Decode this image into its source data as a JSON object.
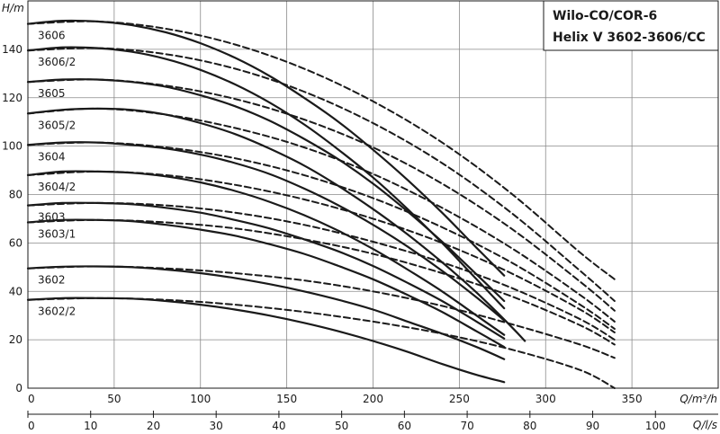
{
  "chart_data": {
    "type": "line",
    "title": [
      "Wilo-CO/COR-6",
      "Helix V 3602-3606/CC"
    ],
    "ylabel": "H/m",
    "xlabel": "Q/m³/h",
    "x2label": "Q/l/s",
    "xlim": [
      0,
      400
    ],
    "ylim": [
      0,
      160
    ],
    "x2lim": [
      0,
      110
    ],
    "x_ticks": [
      0,
      50,
      100,
      150,
      200,
      250,
      300,
      350
    ],
    "y_ticks": [
      0,
      20,
      40,
      60,
      80,
      100,
      120,
      140
    ],
    "x2_ticks": [
      0,
      10,
      20,
      30,
      40,
      50,
      60,
      70,
      80,
      90,
      100
    ],
    "grid": true,
    "series": [
      {
        "name": "3606",
        "style": "solid",
        "x": [
          0,
          20,
          40,
          60,
          80,
          100,
          120,
          140,
          160,
          180,
          200,
          220,
          240,
          260,
          276
        ],
        "y": [
          150.5,
          151.8,
          151.5,
          150,
          147,
          142.5,
          136.5,
          129,
          120,
          110,
          98.5,
          86,
          72.5,
          58,
          46.5
        ]
      },
      {
        "name": "3606",
        "style": "dashed",
        "x": [
          0,
          40,
          80,
          120,
          160,
          200,
          240,
          280,
          320,
          340
        ],
        "y": [
          150.5,
          151.5,
          148.5,
          142,
          132,
          118.5,
          101.5,
          80.5,
          56,
          45
        ]
      },
      {
        "name": "3606/2",
        "style": "solid",
        "x": [
          0,
          20,
          40,
          60,
          80,
          100,
          120,
          140,
          160,
          180,
          200,
          220,
          240,
          260,
          276
        ],
        "y": [
          139.5,
          140.8,
          140.5,
          139,
          136,
          131.5,
          125.5,
          118,
          109,
          98.5,
          87,
          74,
          60,
          45,
          33
        ]
      },
      {
        "name": "3606/2",
        "style": "dashed",
        "x": [
          0,
          40,
          80,
          120,
          160,
          200,
          240,
          280,
          320,
          340
        ],
        "y": [
          139.5,
          140.5,
          138,
          132,
          122.5,
          109.5,
          93,
          72.5,
          48.5,
          36
        ]
      },
      {
        "name": "3605",
        "style": "solid",
        "x": [
          0,
          20,
          40,
          60,
          80,
          100,
          120,
          140,
          160,
          180,
          200,
          220,
          240,
          260,
          276
        ],
        "y": [
          126.5,
          127.5,
          127.5,
          126.5,
          124.5,
          121,
          116.5,
          110.5,
          103,
          94.5,
          84.5,
          73,
          60.5,
          47,
          36
        ]
      },
      {
        "name": "3605",
        "style": "dashed",
        "x": [
          0,
          40,
          80,
          120,
          160,
          200,
          240,
          280,
          320,
          340
        ],
        "y": [
          126.5,
          127.5,
          125,
          119.5,
          111,
          99.5,
          84.5,
          66,
          44,
          32
        ]
      },
      {
        "name": "3605/2",
        "style": "solid",
        "x": [
          0,
          20,
          40,
          60,
          80,
          100,
          120,
          140,
          160,
          180,
          200,
          220,
          240,
          260,
          280,
          288
        ],
        "y": [
          113.5,
          115,
          115.5,
          115,
          113,
          109.5,
          105,
          99,
          92,
          83.5,
          74,
          63.5,
          52,
          39.5,
          25.5,
          19.5
        ]
      },
      {
        "name": "3605/2",
        "style": "dashed",
        "x": [
          0,
          40,
          80,
          120,
          160,
          200,
          240,
          280,
          320,
          340
        ],
        "y": [
          113.5,
          115.5,
          113,
          107.5,
          99.5,
          88.5,
          74.5,
          58,
          38.5,
          27.5
        ]
      },
      {
        "name": "3604",
        "style": "solid",
        "x": [
          0,
          20,
          40,
          60,
          80,
          100,
          120,
          140,
          160,
          180,
          200,
          220,
          240,
          260,
          276
        ],
        "y": [
          100.5,
          101.5,
          101.5,
          100.5,
          99,
          96.5,
          93,
          88.5,
          82.5,
          75.5,
          67.5,
          58.5,
          48.5,
          37.5,
          28
        ]
      },
      {
        "name": "3604",
        "style": "dashed",
        "x": [
          0,
          40,
          80,
          120,
          160,
          200,
          240,
          280,
          320,
          340
        ],
        "y": [
          100.5,
          101.5,
          99.5,
          95,
          88,
          78.5,
          66.5,
          52,
          34.5,
          24.5
        ]
      },
      {
        "name": "3604/2",
        "style": "solid",
        "x": [
          0,
          20,
          40,
          60,
          80,
          100,
          120,
          140,
          160,
          180,
          200,
          220,
          240,
          260,
          276
        ],
        "y": [
          88,
          89.5,
          89.5,
          89,
          87.5,
          85,
          81.5,
          77,
          71.5,
          65,
          57.5,
          49,
          40,
          30,
          22
        ]
      },
      {
        "name": "3604/2",
        "style": "dashed",
        "x": [
          0,
          40,
          80,
          120,
          160,
          200,
          240,
          280,
          320,
          340
        ],
        "y": [
          88,
          89.5,
          88,
          84,
          78,
          70,
          60,
          47.5,
          32.5,
          23
        ]
      },
      {
        "name": "3603",
        "style": "solid",
        "x": [
          0,
          20,
          40,
          60,
          80,
          100,
          120,
          140,
          160,
          180,
          200,
          220,
          240,
          260,
          276
        ],
        "y": [
          75.5,
          76.5,
          76.5,
          76,
          74.5,
          72.5,
          69.5,
          66,
          61.5,
          56.5,
          50.5,
          43.5,
          36,
          27.5,
          20.5
        ]
      },
      {
        "name": "3603",
        "style": "dashed",
        "x": [
          0,
          40,
          80,
          120,
          160,
          200,
          240,
          280,
          320,
          340
        ],
        "y": [
          75.5,
          76.5,
          75.5,
          72.5,
          67.5,
          60.5,
          52,
          41.5,
          28.5,
          20
        ]
      },
      {
        "name": "3603/1",
        "style": "solid",
        "x": [
          0,
          20,
          40,
          60,
          80,
          100,
          120,
          140,
          160,
          180,
          200,
          220,
          240,
          260,
          276
        ],
        "y": [
          68.5,
          69.5,
          69.5,
          69,
          67.5,
          65.5,
          63,
          59.5,
          55.5,
          50.5,
          45,
          38.5,
          31.5,
          23.5,
          17
        ]
      },
      {
        "name": "3603/1",
        "style": "dashed",
        "x": [
          0,
          40,
          80,
          120,
          160,
          200,
          240,
          280,
          320,
          340
        ],
        "y": [
          68.5,
          69.5,
          68.5,
          66,
          61.5,
          55.5,
          47.5,
          38,
          26,
          18
        ]
      },
      {
        "name": "3602",
        "style": "solid",
        "x": [
          0,
          20,
          40,
          60,
          80,
          100,
          120,
          140,
          160,
          180,
          200,
          220,
          240,
          260,
          276
        ],
        "y": [
          49.5,
          50.2,
          50.3,
          50,
          49,
          47.5,
          45.5,
          43,
          40,
          36.5,
          32.5,
          27.5,
          22.5,
          17,
          12
        ]
      },
      {
        "name": "3602",
        "style": "dashed",
        "x": [
          0,
          40,
          80,
          120,
          160,
          200,
          240,
          280,
          320,
          340
        ],
        "y": [
          49.5,
          50.3,
          49.5,
          47.5,
          44.5,
          40,
          34,
          26.5,
          18,
          12.5
        ]
      },
      {
        "name": "3602/2",
        "style": "solid",
        "x": [
          0,
          20,
          40,
          60,
          80,
          100,
          120,
          140,
          160,
          180,
          200,
          220,
          240,
          260,
          276
        ],
        "y": [
          36.5,
          37.2,
          37.2,
          37,
          36,
          34.5,
          32.5,
          30,
          27,
          23.5,
          19.5,
          15,
          10,
          5.5,
          2.5
        ]
      },
      {
        "name": "3602/2",
        "style": "dashed",
        "x": [
          0,
          40,
          80,
          120,
          160,
          200,
          240,
          280,
          320,
          340
        ],
        "y": [
          36.5,
          37.2,
          36.5,
          34.5,
          31.5,
          27.5,
          22.5,
          16,
          7.5,
          0
        ]
      }
    ]
  }
}
